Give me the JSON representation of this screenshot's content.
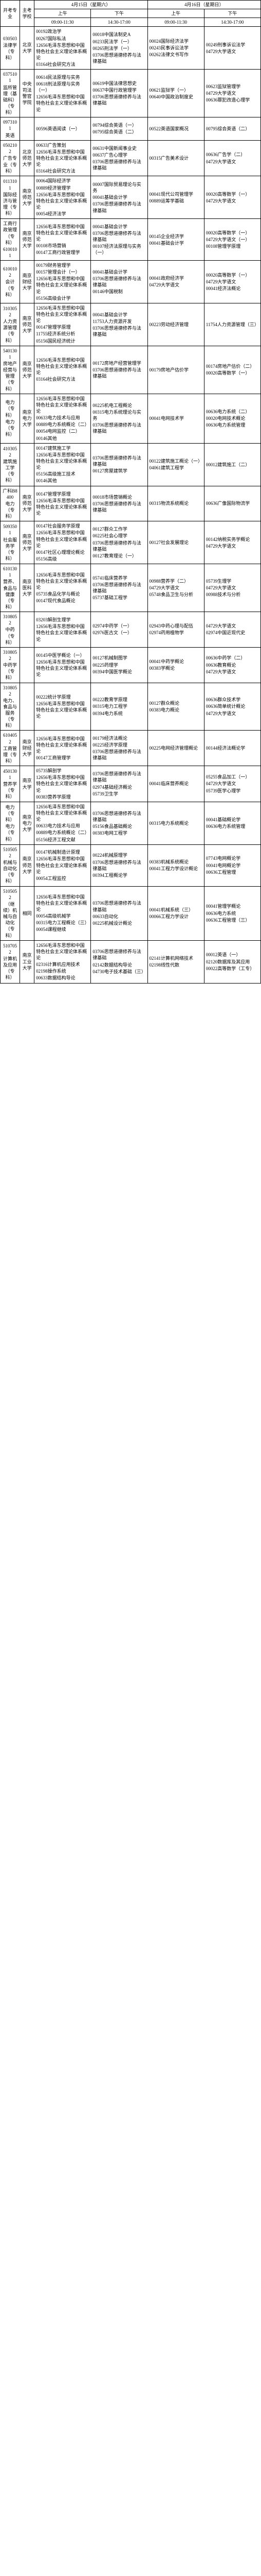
{
  "header": {
    "col_major": "开考专业",
    "col_code": "专业代码及名称",
    "col_school": "主考学校",
    "day1": "4月15日（星期六）",
    "day2": "4月16日（星期日）",
    "morning": "上午",
    "afternoon": "下午",
    "time_am": "09:00-11:30",
    "time_pm": "14:30-17:00"
  },
  "rows": [
    {
      "code": "030503",
      "name": "法律学（专科）",
      "school": "北京大学",
      "s1": [
        "00192政治学",
        "00267国际私法",
        "12656毛泽东思想和中国特色社会主义理论体系概论",
        "03164社会研究方法"
      ],
      "s2": [
        "00018中国法制史A",
        "00233民法学（一）",
        "00265刑法学（一）",
        "03706思想道德修养与法律基础"
      ],
      "s3": [
        "00024国际经济法学",
        "00243民事诉讼法学",
        "00262法律文书写作"
      ],
      "s4": [
        "00249刑事诉讼法学",
        "04729大学语文"
      ]
    },
    {
      "code": "0375101",
      "name": "监所管理（基础科）（专科）",
      "school": "中央司法警官学院",
      "s1": [
        "00614民法原理与实务",
        "00618刑法原理与实务（一）",
        "12656毛泽东思想和中国特色社会主义理论体系概论"
      ],
      "s2": [
        "00619中国法律思想史",
        "00637中国行政管理学",
        "03706思想道德修养与法律基础"
      ],
      "s3": [
        "00621监狱学（一）",
        "00640中国政治制度史"
      ],
      "s4": [
        "00623监狱管理学",
        "04729大学语文",
        "00636罪犯改造心理学"
      ]
    },
    {
      "code": "0973101",
      "name": "英语",
      "school": "",
      "s1": [
        "00596英语阅读（一）"
      ],
      "s2": [
        "00794综合英语（一）",
        "00795综合英语（二）"
      ],
      "s3": [
        "00522英语国家概况"
      ],
      "s4": [
        "00795综合英语（二）"
      ]
    },
    {
      "code": "0502102",
      "name": "广告专业（专科）",
      "school": "北京师范大学",
      "s1": [
        "00633广告策划",
        "12656毛泽东思想和中国特色社会主义理论体系概论",
        "03164社会研究方法"
      ],
      "s2": [
        "00631中国新闻事业史",
        "00637广告心理学",
        "03706思想道德修养与法律基础"
      ],
      "s3": [
        "00315广告美术设计"
      ],
      "s4": [
        "00636广告学（二）",
        "04729大学语文"
      ]
    },
    {
      "code": "0113101",
      "name": "国际经济与管理（专科）",
      "school": "南京师范大学",
      "s1": [
        "00064国际经济学",
        "00889经济管理学",
        "12656毛泽东思想和中国特色社会主义理论体系概论",
        "00054经济法学"
      ],
      "s2": [
        "00007国际贸易理论与实务",
        "00041基础会计学",
        "03706思想道德修养与法律基础"
      ],
      "s3": [
        "00041现代公司管理学",
        "00889运筹学基础"
      ],
      "s4": [
        "00020高等数学（一）",
        "04729大学语文"
      ]
    },
    {
      "code": "工商行政管理（专科）",
      "name": "6100101",
      "school": "南京师范大学",
      "s1": [
        "12656毛泽东思想和中国特色社会主义理论体系概论",
        "00108市场营销",
        "00147工商行政管理学"
      ],
      "s2": [
        "00041基础会计学",
        "03706思想道德修养与法律基础",
        "00107经济法原理与实务（一）"
      ],
      "s3": [
        "00145企业经济学",
        "00041基础会计学"
      ],
      "s4": [
        "00020高等数学（一）",
        "04729大学语文（一）",
        "00108管理学原理"
      ]
    },
    {
      "code": "6100102",
      "name": "会计（专科）",
      "school": "南京财经大学",
      "s1": [
        "00179财务管理学",
        "00157管理会计（一）",
        "12656毛泽东思想和中国特色社会主义理论体系概论",
        "05156高级会计学"
      ],
      "s2": [
        "00041基础会计学",
        "03706思想道德修养与法律基础",
        "00146中国税制"
      ],
      "s3": [
        "00041政府经济学",
        "04729大学语文"
      ],
      "s4": [
        "00020高等数学（一）",
        "04729大学语文",
        "00041经济法概论"
      ]
    },
    {
      "code": "3103052",
      "name": "人力资源管理（专科）",
      "school": "南京师范大学",
      "s1": [
        "12656毛泽东思想和中国特色社会主义理论体系概论",
        "00147管理学原理",
        "11755经济系统分析",
        "05156国民经济统计"
      ],
      "s2": [
        "00041基础会计学",
        "11753人力资源开发",
        "03706思想道德修养与法律基础"
      ],
      "s3": [
        "00223劳动经济管理"
      ],
      "s4": [
        "11754人力资源管理（三）"
      ]
    },
    {
      "code": "5401301",
      "name": "房地产经营与管理（专科）",
      "school": "南京师范大学",
      "s1": [
        "12656毛泽东思想和中国特色社会主义理论体系概论",
        "03164社会研究方法"
      ],
      "s2": [
        "00172房地产经营管理学",
        "03706思想道德修养与法律基础"
      ],
      "s3": [
        "00179房地产估价学"
      ],
      "s4": [
        "00174房地产估价（二）",
        "00020高等数学（一）"
      ]
    },
    {
      "code": "电力（专科）",
      "name": "电力（专科）",
      "school": "南京电力大学",
      "s1": [
        "12656毛泽东思想和中国特色社会主义理论体系概论",
        "00633电力技术与应用",
        "00889电力系统概论（二）",
        "00054电网监控（二）",
        "00146其他"
      ],
      "s2": [
        "00225机电工程概论",
        "00315电力系统理论与实务",
        "03706思想道德修养与法律基础"
      ],
      "s3": [
        "00041电网技术学"
      ],
      "s4": [
        "00636电力系统（二）",
        "00020电网技术概论",
        "00636电力系统管理"
      ]
    },
    {
      "code": "4103052",
      "name": "建筑施工学（专科）",
      "school": "",
      "s1": [
        "00147建筑施工学",
        "12656毛泽东思想和中国特色社会主义理论体系概论",
        "05156高级施工技术",
        "00146其他"
      ],
      "s2": [
        "03706思想道德修养与法律基础",
        "00127房屋建筑学"
      ],
      "s3": [
        "00122建筑施工概论（一）",
        "04061建筑工程学"
      ],
      "s4": [
        "00012建筑施工（二）"
      ]
    },
    {
      "code": "广科B8400",
      "name": "电力（专科）",
      "school": "南京师范大学",
      "s1": [
        "00147管理学原理",
        "12656毛泽东思想和中国特色社会主义理论体系概论"
      ],
      "s2": [
        "00018市场营销概论",
        "03706思想道德修养与法律基础"
      ],
      "s3": [
        "00315物流系统概论"
      ],
      "s4": [
        "00636广像国际物流学"
      ]
    },
    {
      "code": "5093501",
      "name": "社会服务学（专科）",
      "school": "南京师范大学",
      "s1": [
        "00147社会服务学原理",
        "12656毛泽东思想和中国特色社会主义理论体系概论",
        "00147社区心理理论概论",
        "05156高级"
      ],
      "s2": [
        "00127群众工作学",
        "00225社会心理学",
        "03706思想道德修养与法律基础",
        "00127教育理论（一）"
      ],
      "s3": [
        "00127社会发展理论"
      ],
      "s4": [
        "00142纳税实务学概论",
        "04729大学语文"
      ]
    },
    {
      "code": "6101301",
      "name": "营养、食品与健康（专科）",
      "school": "南京医科大学",
      "s1": [
        "12656毛泽东思想和中国特色社会主义理论体系概论",
        "05735食品化学与概论",
        "00147现代食品概论"
      ],
      "s2": [
        "05741临床营养学",
        "03706思想道德修养与法律基础",
        "05737基础工程学"
      ],
      "s3": [
        "00988营养学（二）",
        "04729大学语文",
        "05748食品卫生与分析"
      ],
      "s4": [
        "05739生理学",
        "04729大学语文",
        "00988技术与分析"
      ]
    },
    {
      "code": "3108052",
      "name": "中药（专科）",
      "school": "",
      "s1": [
        "03203解剖生理学",
        "12656毛泽东思想和中国特色社会主义理论体系概论"
      ],
      "s2": [
        "02974中药学（一）",
        "02976医古文（一）"
      ],
      "s3": [
        "02943中药心理与配伍",
        "02974药用植物学"
      ],
      "s4": [
        "04729大学语文",
        "02974中国近现代史"
      ]
    },
    {
      "code": "3108052",
      "name": "中药学（专科）",
      "school": "",
      "s1": [
        "00145中医学概论（一）",
        "12656毛泽东思想和中国特色社会主义理论体系概论"
      ],
      "s2": [
        "00127机械制图学",
        "00225药理学",
        "00394中国医学概论"
      ],
      "s3": [
        "00041中药学概论",
        "00383学概论"
      ],
      "s4": [
        "00636中药学（二）",
        "00636教育概论",
        "04729大学语文"
      ]
    },
    {
      "code": "3108052",
      "name": "电力、食品与服务（专科）",
      "school": "",
      "s1": [
        "00222统计学原理",
        "12656毛泽东思想和中国特色社会主义理论体系概论"
      ],
      "s2": [
        "00222教育学原理",
        "00315电力工程学",
        "00394电力系统"
      ],
      "s3": [
        "00127群众概论",
        "00383电力概论"
      ],
      "s4": [
        "00636群众技术学",
        "00636简单统计概论",
        "04729大学语文"
      ]
    },
    {
      "code": "6104052",
      "name": "工商管理（专科）",
      "school": "南京财经大学",
      "s1": [
        "12656毛泽东思想和中国特色社会主义理论体系概论",
        "00147工商管理学"
      ],
      "s2": [
        "00179经济法概论",
        "00225经济学原理",
        "03706思想道德修养与法律基础"
      ],
      "s3": [
        "00225电网经济管理概论"
      ],
      "s4": [
        "00144经济法概论学"
      ]
    },
    {
      "code": "4501301",
      "name": "营养学（专科）",
      "school": "南京大学",
      "s1": [
        "05735解剖学",
        "12656毛泽东思想和中国特色社会主义理论体系概论",
        "00383营养学原理"
      ],
      "s2": [
        "03706思想道德修养与法律基础",
        "02974基础经济概论",
        "05739卫生学"
      ],
      "s3": [
        "00041临床营养概论"
      ],
      "s4": [
        "05255食品加工（一）",
        "04729大学语文",
        "05739医学心理学"
      ]
    },
    {
      "code": "电力（专科）",
      "name": "电力（专科）",
      "school": "南京电力大学",
      "s1": [
        "12656毛泽东思想和中国特色社会主义理论体系概论",
        "00633电力技术与应用",
        "00889电力系统概论（二）",
        "05156经济工程文献"
      ],
      "s2": [
        "03706思想道德修养与法律基础",
        "05156食品基础概论",
        "00383电网工程学"
      ],
      "s3": [
        "00315电力系统概论"
      ],
      "s4": [
        "00041基础概论学",
        "00636电力系统管理"
      ]
    },
    {
      "code": "5105052",
      "name": "机械与自动化（专科）",
      "school": "南京师范大学",
      "s1": [
        "00147机械制造计原理",
        "12656毛泽东思想和中国特色社会主义理论体系概论",
        "00054工程监控"
      ],
      "s2": [
        "00224机械原理学",
        "03706思想道德修养与法律基础",
        "00394工程概论学"
      ],
      "s3": [
        "00383机械系统概论",
        "00041工程力学设计概论"
      ],
      "s4": [
        "07743电网概论学",
        "00041电网概论学",
        "00636工程管理"
      ]
    },
    {
      "code": "5105052",
      "name": "（继续）机械与自动化（专科）",
      "school": "相同",
      "s1": [
        "12656毛泽东思想和中国特色社会主义理论体系概论",
        "00054高级机械学",
        "00315电力工程概论（三）",
        "00054课程继续"
      ],
      "s2": [
        "03706思想道德修养与法律基础",
        "00633自动化",
        "00225机械设计概论"
      ],
      "s3": [
        "00041机械系统（三）",
        "00066工程力学设计"
      ],
      "s4": [
        "00041管理学概论",
        "00636电力系统",
        "00636工程管理（三）"
      ]
    },
    {
      "code": "5107052",
      "name": "计算机及应用（专科）",
      "school": "南京工业大学",
      "s1": [
        "12656毛泽东思想和中国特色社会主义理论体系概论",
        "02316计算机应用技术",
        "02198操作系统",
        "00633数据结构导论"
      ],
      "s2": [
        "03706思想道德修养与法律基础",
        "02142数据结构导论",
        "04730电子技术基础（三）"
      ],
      "s3": [
        "02141计算机网络技术",
        "02198线性代数"
      ],
      "s4": [
        "00012英语（一）",
        "02120数据库及其应用",
        "00022高等数学（工专）"
      ]
    }
  ]
}
